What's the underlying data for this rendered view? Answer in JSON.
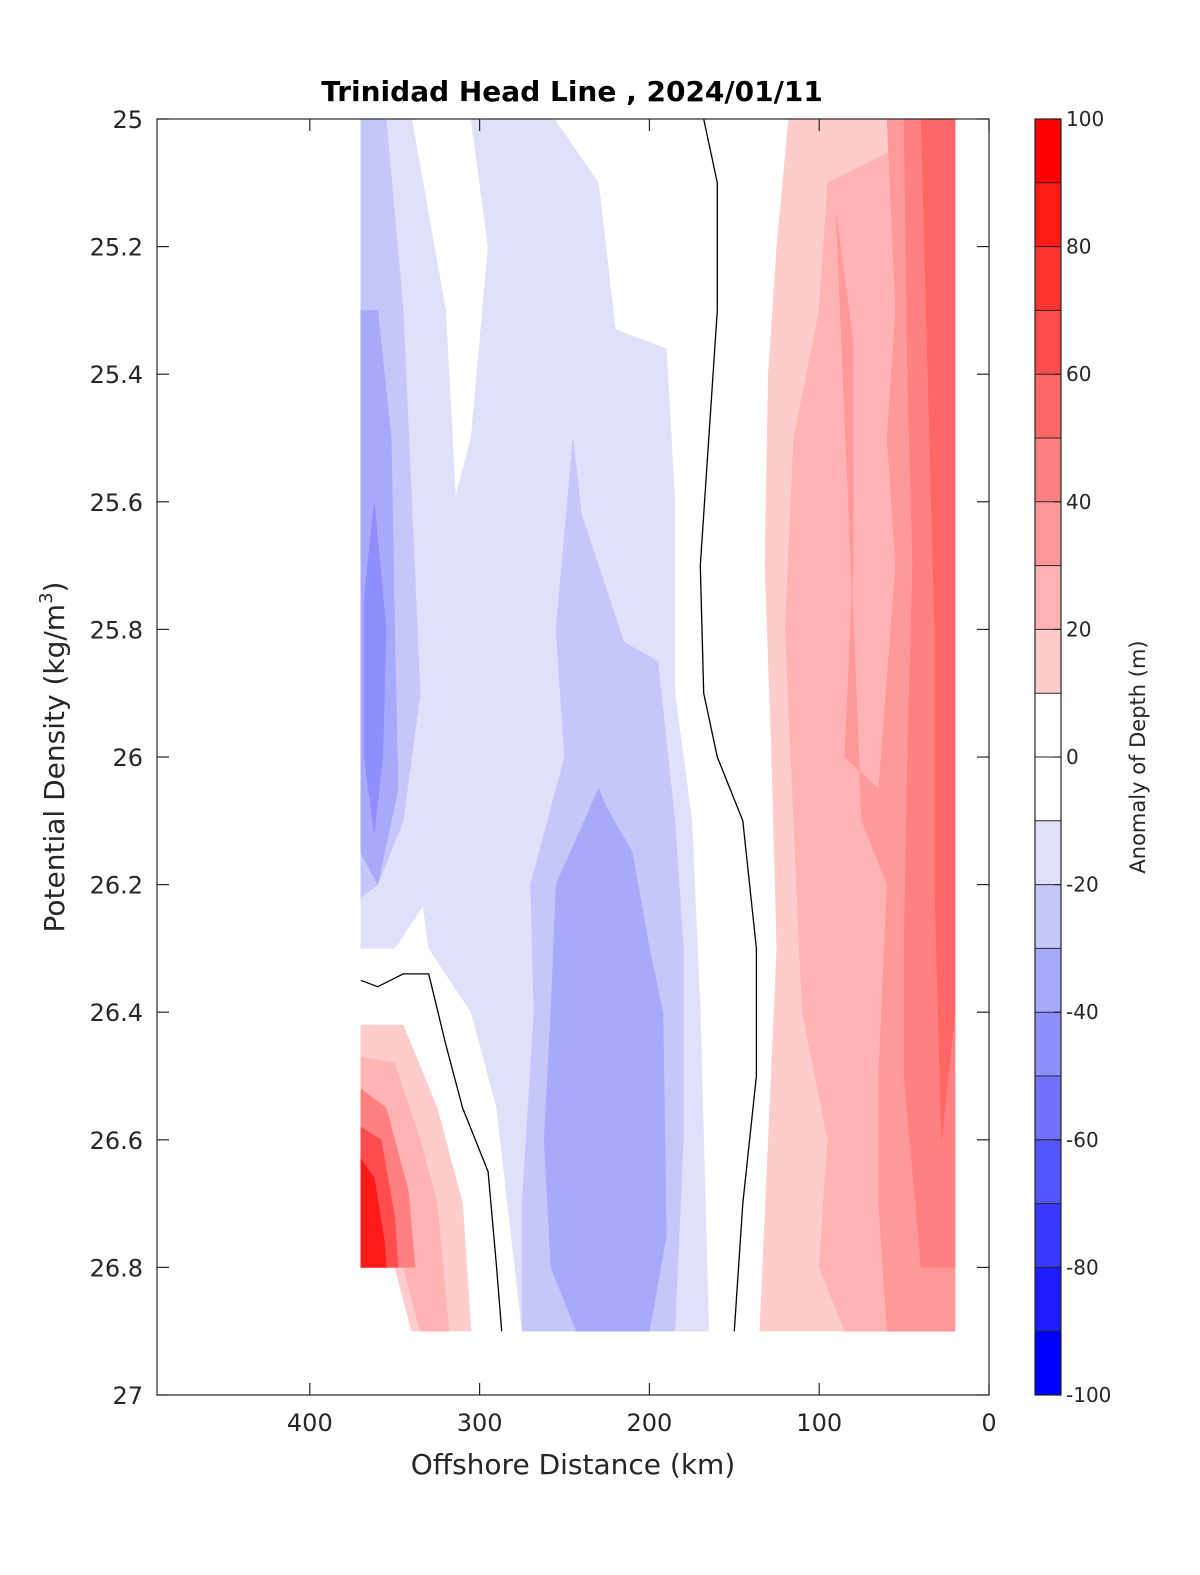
{
  "chart_data": {
    "type": "contour",
    "title": "Trinidad Head Line , 2024/01/11",
    "xlabel": "Offshore Distance (km)",
    "ylabel": "Potential Density (kg/m",
    "ylabel_sup": "3",
    "ylabel_close": ")",
    "xlim": [
      490,
      0
    ],
    "ylim": [
      25,
      27
    ],
    "y_reversed": true,
    "xticks": [
      400,
      300,
      200,
      100,
      0
    ],
    "xtick_labels": [
      "400",
      "300",
      "200",
      "100",
      "0"
    ],
    "yticks": [
      25,
      25.2,
      25.4,
      25.6,
      25.8,
      26,
      26.2,
      26.4,
      26.6,
      26.8,
      27
    ],
    "ytick_labels": [
      "25",
      "25.2",
      "25.4",
      "25.6",
      "25.8",
      "26",
      "26.2",
      "26.4",
      "26.6",
      "26.8",
      "27"
    ],
    "colorbar": {
      "label": "Anomaly of Depth (m)",
      "range": [
        -100,
        100
      ],
      "ticks": [
        100,
        80,
        60,
        40,
        20,
        0,
        -20,
        -40,
        -60,
        -80,
        -100
      ],
      "tick_labels": [
        "100",
        "80",
        "60",
        "40",
        "20",
        "0",
        "-20",
        "-40",
        "-60",
        "-80",
        "-100"
      ],
      "levels": [
        {
          "from": 90,
          "to": 100,
          "color": "#ff0000"
        },
        {
          "from": 80,
          "to": 90,
          "color": "#ff1a1a"
        },
        {
          "from": 70,
          "to": 80,
          "color": "#ff3333"
        },
        {
          "from": 60,
          "to": 70,
          "color": "#ff4d4d"
        },
        {
          "from": 50,
          "to": 60,
          "color": "#ff6666"
        },
        {
          "from": 40,
          "to": 50,
          "color": "#ff8080"
        },
        {
          "from": 30,
          "to": 40,
          "color": "#ff9999"
        },
        {
          "from": 20,
          "to": 30,
          "color": "#ffb3b3"
        },
        {
          "from": 10,
          "to": 20,
          "color": "#ffcccc"
        },
        {
          "from": 0,
          "to": 10,
          "color": "#ffffff"
        },
        {
          "from": -10,
          "to": 0,
          "color": "#ffffff"
        },
        {
          "from": -20,
          "to": -10,
          "color": "#e0e0fa"
        },
        {
          "from": -30,
          "to": -20,
          "color": "#c6c6fb"
        },
        {
          "from": -40,
          "to": -30,
          "color": "#a9a9fc"
        },
        {
          "from": -50,
          "to": -40,
          "color": "#8e8efc"
        },
        {
          "from": -60,
          "to": -50,
          "color": "#7171fd"
        },
        {
          "from": -70,
          "to": -60,
          "color": "#5555fe"
        },
        {
          "from": -80,
          "to": -70,
          "color": "#3838fe"
        },
        {
          "from": -90,
          "to": -80,
          "color": "#1c1cff"
        },
        {
          "from": -100,
          "to": -90,
          "color": "#0000ff"
        }
      ]
    },
    "regions": [
      {
        "name": "blue-w-band-10",
        "level": -10,
        "color": "#e0e0fa",
        "points": [
          [
            370,
            25.0
          ],
          [
            340,
            25.0
          ],
          [
            320,
            25.3
          ],
          [
            310,
            25.8
          ],
          [
            325,
            26.2
          ],
          [
            350,
            26.3
          ],
          [
            370,
            26.3
          ]
        ]
      },
      {
        "name": "blue-c-band-10",
        "level": -10,
        "color": "#e0e0fa",
        "points": [
          [
            305,
            25.0
          ],
          [
            256,
            25.0
          ],
          [
            230,
            25.1
          ],
          [
            220,
            25.33
          ],
          [
            190,
            25.36
          ],
          [
            185,
            25.6
          ],
          [
            185,
            25.9
          ],
          [
            175,
            26.1
          ],
          [
            170,
            26.4
          ],
          [
            165,
            26.9
          ],
          [
            275,
            26.9
          ],
          [
            290,
            26.55
          ],
          [
            305,
            26.4
          ],
          [
            330,
            26.3
          ],
          [
            340,
            26.1
          ],
          [
            330,
            25.9
          ],
          [
            325,
            25.7
          ],
          [
            305,
            25.5
          ],
          [
            295,
            25.2
          ]
        ]
      },
      {
        "name": "blue-w-band-20",
        "level": -20,
        "color": "#c6c6fb",
        "points": [
          [
            370,
            25.0
          ],
          [
            355,
            25.0
          ],
          [
            345,
            25.3
          ],
          [
            340,
            25.6
          ],
          [
            335,
            25.9
          ],
          [
            345,
            26.1
          ],
          [
            360,
            26.2
          ],
          [
            370,
            26.22
          ]
        ]
      },
      {
        "name": "blue-c-band-20",
        "level": -20,
        "color": "#c6c6fb",
        "points": [
          [
            245,
            25.5
          ],
          [
            255,
            25.8
          ],
          [
            250,
            26.0
          ],
          [
            270,
            26.2
          ],
          [
            268,
            26.4
          ],
          [
            275,
            26.7
          ],
          [
            275,
            26.9
          ],
          [
            185,
            26.9
          ],
          [
            180,
            26.6
          ],
          [
            180,
            26.3
          ],
          [
            185,
            26.1
          ],
          [
            195,
            25.85
          ],
          [
            215,
            25.82
          ],
          [
            240,
            25.62
          ]
        ]
      },
      {
        "name": "blue-w-band-30",
        "level": -30,
        "color": "#a9a9fc",
        "points": [
          [
            370,
            25.3
          ],
          [
            360,
            25.3
          ],
          [
            352,
            25.5
          ],
          [
            350,
            25.8
          ],
          [
            348,
            26.05
          ],
          [
            360,
            26.2
          ],
          [
            370,
            26.15
          ]
        ]
      },
      {
        "name": "blue-c-band-30",
        "level": -30,
        "color": "#a9a9fc",
        "points": [
          [
            230,
            26.05
          ],
          [
            255,
            26.2
          ],
          [
            258,
            26.4
          ],
          [
            262,
            26.6
          ],
          [
            258,
            26.8
          ],
          [
            243,
            26.9
          ],
          [
            200,
            26.9
          ],
          [
            190,
            26.75
          ],
          [
            192,
            26.4
          ],
          [
            200,
            26.3
          ],
          [
            210,
            26.15
          ],
          [
            225,
            26.08
          ]
        ]
      },
      {
        "name": "blue-w-band-40",
        "level": -40,
        "color": "#8e8efc",
        "points": [
          [
            362,
            25.6
          ],
          [
            368,
            25.75
          ],
          [
            368,
            26.0
          ],
          [
            362,
            26.12
          ],
          [
            357,
            26.0
          ],
          [
            355,
            25.8
          ]
        ]
      },
      {
        "name": "red-e-band-10",
        "level": 10,
        "color": "#ffcccc",
        "points": [
          [
            118,
            25.0
          ],
          [
            20,
            25.0
          ],
          [
            20,
            26.3
          ],
          [
            20,
            26.9
          ],
          [
            135,
            26.9
          ],
          [
            130,
            26.6
          ],
          [
            125,
            26.3
          ],
          [
            128,
            26.0
          ],
          [
            132,
            25.7
          ],
          [
            130,
            25.4
          ],
          [
            125,
            25.2
          ]
        ]
      },
      {
        "name": "red-e-band-20",
        "level": 20,
        "color": "#ffb3b3",
        "points": [
          [
            95,
            25.1
          ],
          [
            20,
            25.0
          ],
          [
            20,
            26.9
          ],
          [
            85,
            26.9
          ],
          [
            100,
            26.8
          ],
          [
            95,
            26.6
          ],
          [
            110,
            26.4
          ],
          [
            115,
            26.1
          ],
          [
            120,
            25.8
          ],
          [
            115,
            25.5
          ],
          [
            100,
            25.3
          ]
        ]
      },
      {
        "name": "red-e-band-30",
        "level": 30,
        "color": "#ff9999",
        "points": [
          [
            90,
            25.15
          ],
          [
            80,
            25.35
          ],
          [
            80,
            25.7
          ],
          [
            85,
            26.0
          ],
          [
            65,
            26.05
          ],
          [
            55,
            25.7
          ],
          [
            60,
            25.5
          ],
          [
            55,
            25.3
          ],
          [
            60,
            25.0
          ],
          [
            20,
            25.0
          ],
          [
            20,
            26.9
          ],
          [
            60,
            26.9
          ],
          [
            65,
            26.7
          ],
          [
            65,
            26.5
          ],
          [
            60,
            26.2
          ],
          [
            75,
            26.1
          ]
        ]
      },
      {
        "name": "red-e-band-40",
        "level": 40,
        "color": "#ff8080",
        "points": [
          [
            50,
            25.0
          ],
          [
            20,
            25.0
          ],
          [
            20,
            26.8
          ],
          [
            40,
            26.8
          ],
          [
            50,
            26.5
          ],
          [
            50,
            26.3
          ],
          [
            48,
            26.0
          ],
          [
            45,
            25.7
          ],
          [
            48,
            25.4
          ]
        ]
      },
      {
        "name": "red-e-band-50",
        "level": 50,
        "color": "#ff6666",
        "points": [
          [
            40,
            25.0
          ],
          [
            20,
            25.0
          ],
          [
            20,
            26.4
          ],
          [
            28,
            26.6
          ],
          [
            32,
            26.2
          ],
          [
            32,
            25.8
          ],
          [
            35,
            25.5
          ],
          [
            38,
            25.2
          ]
        ]
      },
      {
        "name": "red-w-band-10",
        "level": 10,
        "color": "#ffcccc",
        "points": [
          [
            370,
            26.42
          ],
          [
            345,
            26.42
          ],
          [
            325,
            26.55
          ],
          [
            310,
            26.7
          ],
          [
            305,
            26.9
          ],
          [
            340,
            26.9
          ],
          [
            350,
            26.8
          ],
          [
            370,
            26.8
          ]
        ]
      },
      {
        "name": "red-w-band-20",
        "level": 20,
        "color": "#ffb3b3",
        "points": [
          [
            370,
            26.47
          ],
          [
            350,
            26.48
          ],
          [
            335,
            26.6
          ],
          [
            325,
            26.7
          ],
          [
            318,
            26.9
          ],
          [
            335,
            26.9
          ],
          [
            345,
            26.8
          ],
          [
            370,
            26.8
          ]
        ]
      },
      {
        "name": "red-w-band-40",
        "level": 40,
        "color": "#ff8080",
        "points": [
          [
            370,
            26.52
          ],
          [
            355,
            26.55
          ],
          [
            342,
            26.68
          ],
          [
            338,
            26.8
          ],
          [
            370,
            26.8
          ]
        ]
      },
      {
        "name": "red-w-band-60",
        "level": 60,
        "color": "#ff4d4d",
        "points": [
          [
            370,
            26.58
          ],
          [
            358,
            26.6
          ],
          [
            350,
            26.72
          ],
          [
            348,
            26.8
          ],
          [
            370,
            26.8
          ]
        ]
      },
      {
        "name": "red-w-band-80",
        "level": 80,
        "color": "#ff1a1a",
        "points": [
          [
            370,
            26.63
          ],
          [
            362,
            26.66
          ],
          [
            356,
            26.76
          ],
          [
            355,
            26.8
          ],
          [
            370,
            26.8
          ]
        ]
      }
    ],
    "zero_contours": [
      {
        "name": "zero-contour-east",
        "points": [
          [
            168,
            25.0
          ],
          [
            160,
            25.1
          ],
          [
            160,
            25.3
          ],
          [
            165,
            25.5
          ],
          [
            170,
            25.7
          ],
          [
            168,
            25.9
          ],
          [
            160,
            26.0
          ],
          [
            145,
            26.1
          ],
          [
            137,
            26.3
          ],
          [
            137,
            26.5
          ],
          [
            145,
            26.7
          ],
          [
            150,
            26.9
          ]
        ]
      },
      {
        "name": "zero-contour-west",
        "points": [
          [
            370,
            26.35
          ],
          [
            360,
            26.36
          ],
          [
            345,
            26.34
          ],
          [
            330,
            26.34
          ],
          [
            320,
            26.45
          ],
          [
            310,
            26.55
          ],
          [
            295,
            26.65
          ],
          [
            290,
            26.8
          ],
          [
            287,
            26.9
          ]
        ]
      }
    ]
  }
}
